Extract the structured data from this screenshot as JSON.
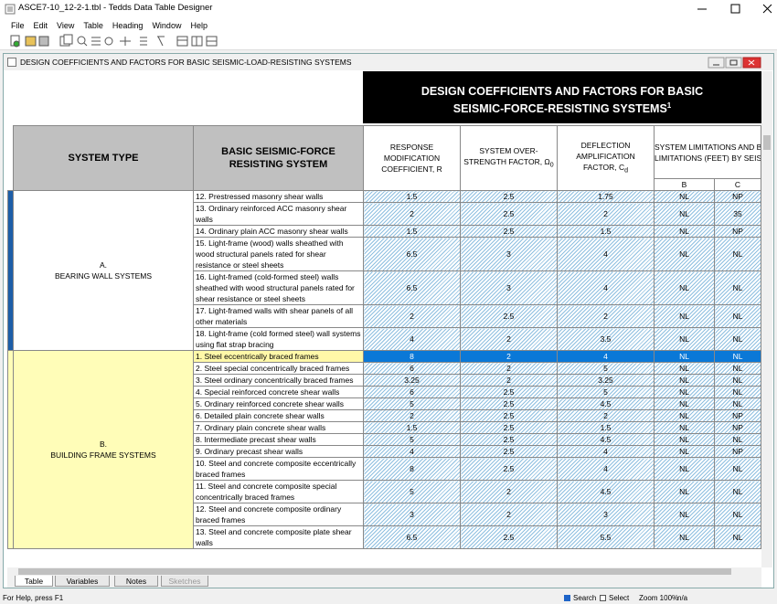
{
  "window": {
    "title": "ASCE7-10_12-2-1.tbl - Tedds Data Table Designer",
    "menu": [
      "File",
      "Edit",
      "View",
      "Table",
      "Heading",
      "Window",
      "Help"
    ]
  },
  "document": {
    "title": "DESIGN COEFFICIENTS AND FACTORS FOR BASIC SEISMIC-LOAD-RESISTING SYSTEMS"
  },
  "table": {
    "title_lines": [
      "DESIGN COEFFICIENTS AND FACTORS FOR BASIC",
      "SEISMIC-FORCE-RESISTING SYSTEMS"
    ],
    "title_sup": "1",
    "headers": [
      "SYSTEM TYPE",
      "BASIC SEISMIC-FORCE RESISTING SYSTEM",
      {
        "text": "RESPONSE MODIFICATION COEFFICIENT, R"
      },
      {
        "text": "SYSTEM OVER-STRENGTH FACTOR, Ω",
        "sub": "0"
      },
      {
        "text": "DEFLECTION AMPLIFICATION FACTOR, C",
        "sub": "d"
      }
    ],
    "limits_header": [
      "SYSTEM LIMITATIONS AND BUIL",
      "LIMITATIONS (FEET) BY SEISMIC"
    ],
    "limits_sub": [
      "B",
      "C"
    ],
    "groups": [
      {
        "label": [
          "A.",
          "BEARING WALL SYSTEMS"
        ],
        "rows": [
          [
            "12. Prestressed masonry shear walls",
            "1.5",
            "2.5",
            "1.75",
            "NL",
            "NP"
          ],
          [
            "13. Ordinary reinforced ACC masonry shear walls",
            "2",
            "2.5",
            "2",
            "NL",
            "35"
          ],
          [
            "14. Ordinary plain ACC masonry shear walls",
            "1.5",
            "2.5",
            "1.5",
            "NL",
            "NP"
          ],
          [
            "15. Light-frame (wood) walls sheathed with wood structural panels rated for shear resistance or steel sheets",
            "6.5",
            "3",
            "4",
            "NL",
            "NL"
          ],
          [
            "16. Light-framed (cold-formed steel) walls sheathed with wood structural panels rated for shear resistance or steel sheets",
            "6.5",
            "3",
            "4",
            "NL",
            "NL"
          ],
          [
            "17. Light-framed walls with shear panels of all other materials",
            "2",
            "2.5",
            "2",
            "NL",
            "NL"
          ],
          [
            "18. Light-frame (cold formed steel) wall systems using flat strap bracing",
            "4",
            "2",
            "3.5",
            "NL",
            "NL"
          ]
        ]
      },
      {
        "label": [
          "B.",
          "BUILDING FRAME SYSTEMS"
        ],
        "rows": [
          [
            "1. Steel eccentrically braced frames",
            "8",
            "2",
            "4",
            "NL",
            "NL"
          ],
          [
            "2. Steel special concentrically braced frames",
            "6",
            "2",
            "5",
            "NL",
            "NL"
          ],
          [
            "3. Steel ordinary concentrically braced frames",
            "3.25",
            "2",
            "3.25",
            "NL",
            "NL"
          ],
          [
            "4. Special reinforced concrete shear walls",
            "6",
            "2.5",
            "5",
            "NL",
            "NL"
          ],
          [
            "5. Ordinary reinforced concrete shear walls",
            "5",
            "2.5",
            "4.5",
            "NL",
            "NL"
          ],
          [
            "6. Detailed plain concrete shear walls",
            "2",
            "2.5",
            "2",
            "NL",
            "NP"
          ],
          [
            "7. Ordinary plain concrete shear walls",
            "1.5",
            "2.5",
            "1.5",
            "NL",
            "NP"
          ],
          [
            "8. Intermediate precast shear walls",
            "5",
            "2.5",
            "4.5",
            "NL",
            "NL"
          ],
          [
            "9. Ordinary precast shear walls",
            "4",
            "2.5",
            "4",
            "NL",
            "NP"
          ],
          [
            "10. Steel and concrete composite eccentrically braced frames",
            "8",
            "2.5",
            "4",
            "NL",
            "NL"
          ],
          [
            "11. Steel and concrete composite special concentrically braced frames",
            "5",
            "2",
            "4.5",
            "NL",
            "NL"
          ],
          [
            "12. Steel and concrete composite ordinary braced frames",
            "3",
            "2",
            "3",
            "NL",
            "NL"
          ],
          [
            "13. Steel and concrete composite plate shear walls",
            "6.5",
            "2.5",
            "5.5",
            "NL",
            "NL"
          ]
        ]
      }
    ]
  },
  "tabs": [
    "Table",
    "Variables",
    "Notes",
    "Sketches"
  ],
  "status": {
    "help": "For Help, press F1",
    "search": "Search",
    "select": "Select",
    "zoom": "Zoom 100%",
    "na": "n/a"
  }
}
